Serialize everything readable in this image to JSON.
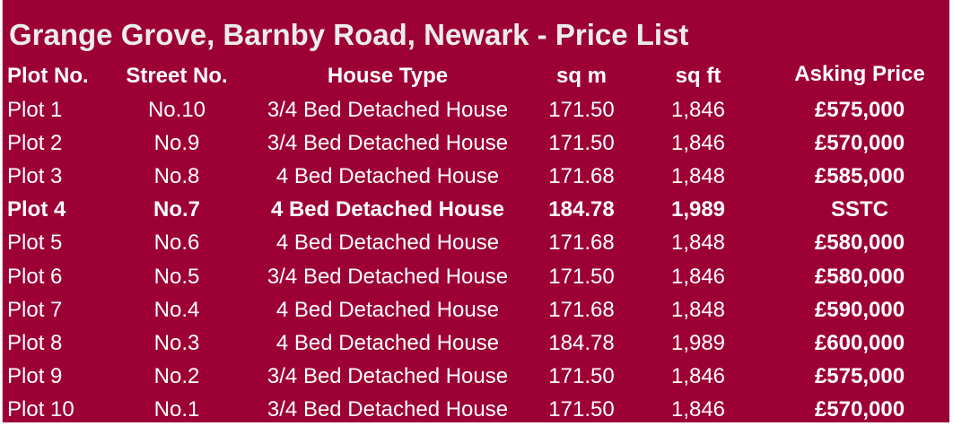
{
  "title": "Grange Grove, Barnby Road, Newark - Price List",
  "background_color": "#9d0034",
  "headers": [
    "Plot No.",
    "Street No.",
    "House Type",
    "sq m",
    "sq ft",
    "Asking Price"
  ],
  "rows": [
    {
      "plot": "Plot 1",
      "street": "No.10",
      "type": "3/4 Bed Detached House",
      "sqm": "171.50",
      "sqft": "1,846",
      "price": "£575,000",
      "bold": false
    },
    {
      "plot": "Plot 2",
      "street": "No.9",
      "type": "3/4 Bed Detached House",
      "sqm": "171.50",
      "sqft": "1,846",
      "price": "£570,000",
      "bold": false
    },
    {
      "plot": "Plot 3",
      "street": "No.8",
      "type": "4 Bed Detached House",
      "sqm": "171.68",
      "sqft": "1,848",
      "price": "£585,000",
      "bold": false
    },
    {
      "plot": "Plot 4",
      "street": "No.7",
      "type": "4 Bed Detached House",
      "sqm": "184.78",
      "sqft": "1,989",
      "price": "SSTC",
      "bold": true
    },
    {
      "plot": "Plot 5",
      "street": "No.6",
      "type": "4 Bed Detached House",
      "sqm": "171.68",
      "sqft": "1,848",
      "price": "£580,000",
      "bold": false
    },
    {
      "plot": "Plot 6",
      "street": "No.5",
      "type": "3/4 Bed Detached House",
      "sqm": "171.50",
      "sqft": "1,846",
      "price": "£580,000",
      "bold": false
    },
    {
      "plot": "Plot 7",
      "street": "No.4",
      "type": "4 Bed Detached House",
      "sqm": "171.68",
      "sqft": "1,848",
      "price": "£590,000",
      "bold": false
    },
    {
      "plot": "Plot 8",
      "street": "No.3",
      "type": "4 Bed Detached House",
      "sqm": "184.78",
      "sqft": "1,989",
      "price": "£600,000",
      "bold": false
    },
    {
      "plot": "Plot 9",
      "street": "No.2",
      "type": "3/4 Bed Detached House",
      "sqm": "171.50",
      "sqft": "1,846",
      "price": "£575,000",
      "bold": false
    },
    {
      "plot": "Plot 10",
      "street": "No.1",
      "type": "3/4 Bed Detached House",
      "sqm": "171.50",
      "sqft": "1,846",
      "price": "£570,000",
      "bold": false
    }
  ]
}
